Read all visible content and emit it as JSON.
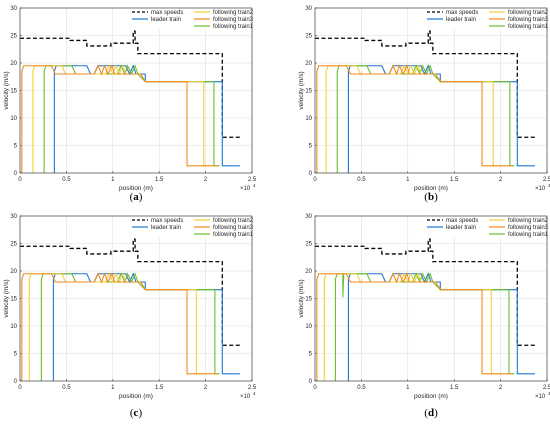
{
  "x_exponent": "×10",
  "x_exponent_power": "4",
  "chart_data": [
    {
      "type": "line",
      "panel": "(a)",
      "caption_letter": "a",
      "xlabel": "position (m)",
      "ylabel": "velocity (m/s)",
      "xlim": [
        0,
        2.5
      ],
      "ylim": [
        0,
        30
      ],
      "xticks": [
        "0",
        "0.5",
        "1",
        "1.5",
        "2",
        "2.5"
      ],
      "yticks": [
        "0",
        "5",
        "10",
        "15",
        "20",
        "25",
        "30"
      ],
      "grid": true,
      "legend_position": "top-right",
      "series": [
        {
          "name": "max speeds",
          "color": "#000000",
          "style": "dashed",
          "x": [
            0,
            0.54,
            0.54,
            0.72,
            0.72,
            0.98,
            0.98,
            1.22,
            1.22,
            1.24,
            1.24,
            1.27,
            1.27,
            2.18,
            2.18,
            2.37
          ],
          "y": [
            24.5,
            24.5,
            24.1,
            24.1,
            23.1,
            23.1,
            23.6,
            23.6,
            25.8,
            25.8,
            23.6,
            23.6,
            21.7,
            21.7,
            6.5,
            6.5
          ]
        },
        {
          "name": "leader train",
          "color": "#1f77d4",
          "style": "solid",
          "x": [
            0.37,
            0.37,
            0.39,
            0.41,
            0.72,
            0.76,
            0.8,
            0.84,
            1.14,
            1.18,
            1.22,
            1.25,
            1.3,
            1.35,
            1.35,
            2.18,
            2.18,
            2.37
          ],
          "y": [
            0,
            18.5,
            19.5,
            19.5,
            19.5,
            18,
            18,
            19.5,
            19.5,
            18,
            19.5,
            18,
            18,
            18,
            16.6,
            16.6,
            1.3,
            1.3
          ]
        },
        {
          "name": "following train1",
          "color": "#6abf2a",
          "style": "solid",
          "x": [
            0.26,
            0.26,
            0.28,
            0.3,
            0.56,
            0.6,
            0.64,
            1.05,
            1.09,
            1.13,
            1.16,
            1.2,
            1.24,
            1.27,
            1.35,
            2.09,
            2.09,
            2.15
          ],
          "y": [
            0,
            18.5,
            19.5,
            19.5,
            19.5,
            18,
            18,
            18,
            19.5,
            18,
            19.5,
            18,
            19.5,
            18,
            16.6,
            16.6,
            1.3,
            1.3
          ]
        },
        {
          "name": "following train2",
          "color": "#f2d03b",
          "style": "solid",
          "x": [
            0.14,
            0.14,
            0.16,
            0.18,
            0.45,
            0.49,
            0.53,
            0.92,
            0.96,
            1.0,
            1.03,
            1.07,
            1.11,
            1.14,
            1.3,
            1.35,
            1.98,
            1.98,
            2.05
          ],
          "y": [
            0,
            18.5,
            19.5,
            19.5,
            19.5,
            18,
            18,
            18,
            19.5,
            18,
            19.5,
            18,
            19.5,
            18,
            18,
            16.6,
            16.6,
            1.3,
            1.3
          ]
        },
        {
          "name": "following train3",
          "color": "#f28a1e",
          "style": "solid",
          "x": [
            0.02,
            0.02,
            0.04,
            0.06,
            0.34,
            0.38,
            0.42,
            0.8,
            0.84,
            0.88,
            0.91,
            0.95,
            0.99,
            1.02,
            1.3,
            1.35,
            1.8,
            1.8,
            2.13
          ],
          "y": [
            0,
            18.5,
            19.5,
            19.5,
            19.5,
            18,
            18,
            18,
            19.5,
            18,
            19.5,
            18,
            19.5,
            18,
            18,
            16.6,
            16.6,
            1.3,
            1.3
          ]
        }
      ]
    },
    {
      "type": "line",
      "panel": "(b)",
      "caption_letter": "b",
      "xlabel": "position (m)",
      "ylabel": "velocity (m/s)",
      "xlim": [
        0,
        2.5
      ],
      "ylim": [
        0,
        30
      ],
      "xticks": [
        "0",
        "0.5",
        "1",
        "1.5",
        "2",
        "2.5"
      ],
      "yticks": [
        "0",
        "5",
        "10",
        "15",
        "20",
        "25",
        "30"
      ],
      "grid": true,
      "legend_position": "top-right",
      "series": [
        {
          "name": "max speeds",
          "color": "#000000",
          "style": "dashed",
          "x": [
            0,
            0.54,
            0.54,
            0.72,
            0.72,
            0.98,
            0.98,
            1.22,
            1.22,
            1.24,
            1.24,
            1.27,
            1.27,
            2.18,
            2.18,
            2.37
          ],
          "y": [
            24.5,
            24.5,
            24.1,
            24.1,
            23.1,
            23.1,
            23.6,
            23.6,
            25.8,
            25.8,
            23.6,
            23.6,
            21.7,
            21.7,
            6.5,
            6.5
          ]
        },
        {
          "name": "leader train",
          "color": "#1f77d4",
          "style": "solid",
          "x": [
            0.36,
            0.36,
            0.38,
            0.4,
            0.72,
            0.76,
            0.8,
            0.84,
            1.14,
            1.18,
            1.22,
            1.25,
            1.3,
            1.35,
            1.35,
            2.18,
            2.18,
            2.37
          ],
          "y": [
            0,
            18.5,
            19.5,
            19.5,
            19.5,
            18,
            18,
            19.5,
            19.5,
            18,
            19.5,
            18,
            18,
            18,
            16.6,
            16.6,
            1.3,
            1.3
          ]
        },
        {
          "name": "following train1",
          "color": "#6abf2a",
          "style": "solid",
          "x": [
            0.24,
            0.24,
            0.26,
            0.28,
            0.56,
            0.6,
            0.64,
            1.05,
            1.09,
            1.13,
            1.16,
            1.2,
            1.24,
            1.27,
            1.35,
            2.1,
            2.1,
            2.15
          ],
          "y": [
            0,
            18.5,
            19.5,
            19.5,
            19.5,
            18,
            18,
            18,
            19.5,
            18,
            19.5,
            18,
            19.5,
            18,
            16.6,
            16.6,
            1.3,
            1.3
          ]
        },
        {
          "name": "following train2",
          "color": "#f2d03b",
          "style": "solid",
          "x": [
            0.12,
            0.12,
            0.14,
            0.16,
            0.45,
            0.49,
            0.53,
            0.92,
            0.96,
            1.0,
            1.03,
            1.07,
            1.11,
            1.14,
            1.3,
            1.35,
            1.92,
            1.92,
            2.0
          ],
          "y": [
            0,
            18.5,
            19.5,
            19.5,
            19.5,
            18,
            18,
            18,
            19.5,
            18,
            19.5,
            18,
            19.5,
            18,
            18,
            16.6,
            16.6,
            1.3,
            1.3
          ]
        },
        {
          "name": "following train3",
          "color": "#f28a1e",
          "style": "solid",
          "x": [
            0.02,
            0.02,
            0.04,
            0.06,
            0.34,
            0.38,
            0.42,
            0.8,
            0.84,
            0.88,
            0.91,
            0.95,
            0.99,
            1.02,
            1.3,
            1.35,
            1.8,
            1.8,
            2.13
          ],
          "y": [
            0,
            18.5,
            19.5,
            19.5,
            19.5,
            18,
            18,
            18,
            19.5,
            18,
            19.5,
            18,
            19.5,
            18,
            18,
            16.6,
            16.6,
            1.3,
            1.3
          ]
        }
      ]
    },
    {
      "type": "line",
      "panel": "(c)",
      "caption_letter": "c",
      "xlabel": "position (m)",
      "ylabel": "velocity (m/s)",
      "xlim": [
        0,
        2.5
      ],
      "ylim": [
        0,
        30
      ],
      "xticks": [
        "0",
        "0.5",
        "1",
        "1.5",
        "2",
        "2.5"
      ],
      "yticks": [
        "0",
        "5",
        "10",
        "15",
        "20",
        "25",
        "30"
      ],
      "grid": true,
      "legend_position": "top-right",
      "series": [
        {
          "name": "max speeds",
          "color": "#000000",
          "style": "dashed",
          "x": [
            0,
            0.54,
            0.54,
            0.72,
            0.72,
            0.98,
            0.98,
            1.22,
            1.22,
            1.24,
            1.24,
            1.27,
            1.27,
            2.18,
            2.18,
            2.37
          ],
          "y": [
            24.5,
            24.5,
            24.1,
            24.1,
            23.1,
            23.1,
            23.6,
            23.6,
            25.8,
            25.8,
            23.6,
            23.6,
            21.7,
            21.7,
            6.5,
            6.5
          ]
        },
        {
          "name": "leader train",
          "color": "#1f77d4",
          "style": "solid",
          "x": [
            0.36,
            0.36,
            0.38,
            0.4,
            0.72,
            0.76,
            0.8,
            0.84,
            1.14,
            1.18,
            1.22,
            1.25,
            1.3,
            1.35,
            1.35,
            2.18,
            2.18,
            2.37
          ],
          "y": [
            0,
            18.5,
            19.5,
            19.5,
            19.5,
            18,
            18,
            19.5,
            19.5,
            18,
            19.5,
            18,
            18,
            18,
            16.6,
            16.6,
            1.3,
            1.3
          ]
        },
        {
          "name": "following train1",
          "color": "#6abf2a",
          "style": "solid",
          "x": [
            0.23,
            0.23,
            0.25,
            0.27,
            0.56,
            0.6,
            0.64,
            1.05,
            1.09,
            1.13,
            1.16,
            1.2,
            1.24,
            1.27,
            1.35,
            2.1,
            2.1,
            2.15
          ],
          "y": [
            0,
            18.5,
            19.5,
            19.5,
            19.5,
            18,
            18,
            18,
            19.5,
            18,
            19.5,
            18,
            19.5,
            18,
            16.6,
            16.6,
            1.3,
            1.3
          ]
        },
        {
          "name": "following train2",
          "color": "#f2d03b",
          "style": "solid",
          "x": [
            0.1,
            0.1,
            0.12,
            0.14,
            0.45,
            0.49,
            0.53,
            0.92,
            0.96,
            1.0,
            1.03,
            1.07,
            1.11,
            1.14,
            1.3,
            1.35,
            1.9,
            1.9,
            1.98
          ],
          "y": [
            0,
            18.5,
            19.5,
            19.5,
            19.5,
            18,
            18,
            18,
            19.5,
            18,
            19.5,
            18,
            19.5,
            18,
            18,
            16.6,
            16.6,
            1.3,
            1.3
          ]
        },
        {
          "name": "following train3",
          "color": "#f28a1e",
          "style": "solid",
          "x": [
            0.02,
            0.02,
            0.04,
            0.06,
            0.34,
            0.38,
            0.42,
            0.8,
            0.84,
            0.88,
            0.91,
            0.95,
            0.99,
            1.02,
            1.3,
            1.35,
            1.8,
            1.8,
            2.13
          ],
          "y": [
            0,
            18.5,
            19.5,
            19.5,
            19.5,
            18,
            18,
            18,
            19.5,
            18,
            19.5,
            18,
            19.5,
            18,
            18,
            16.6,
            16.6,
            1.3,
            1.3
          ]
        }
      ]
    },
    {
      "type": "line",
      "panel": "(d)",
      "caption_letter": "d",
      "xlabel": "position (m)",
      "ylabel": "velocity (m/s)",
      "xlim": [
        0,
        2.5
      ],
      "ylim": [
        0,
        30
      ],
      "xticks": [
        "0",
        "0.5",
        "1",
        "1.5",
        "2",
        "2.5"
      ],
      "yticks": [
        "0",
        "5",
        "10",
        "15",
        "20",
        "25",
        "30"
      ],
      "grid": true,
      "legend_position": "top-right",
      "series": [
        {
          "name": "max speeds",
          "color": "#000000",
          "style": "dashed",
          "x": [
            0,
            0.54,
            0.54,
            0.72,
            0.72,
            0.98,
            0.98,
            1.22,
            1.22,
            1.24,
            1.24,
            1.27,
            1.27,
            2.18,
            2.18,
            2.37
          ],
          "y": [
            24.5,
            24.5,
            24.1,
            24.1,
            23.1,
            23.1,
            23.6,
            23.6,
            25.8,
            25.8,
            23.6,
            23.6,
            21.7,
            21.7,
            6.5,
            6.5
          ]
        },
        {
          "name": "leader train",
          "color": "#1f77d4",
          "style": "solid",
          "x": [
            0.36,
            0.36,
            0.38,
            0.4,
            0.72,
            0.76,
            0.8,
            0.84,
            1.14,
            1.18,
            1.22,
            1.25,
            1.3,
            1.35,
            1.35,
            2.18,
            2.18,
            2.37
          ],
          "y": [
            0,
            18.5,
            19.5,
            19.5,
            19.5,
            18,
            18,
            19.5,
            19.5,
            18,
            19.5,
            18,
            18,
            18,
            16.6,
            16.6,
            1.3,
            1.3
          ]
        },
        {
          "name": "following train1",
          "color": "#6abf2a",
          "style": "solid",
          "x": [
            0.22,
            0.22,
            0.24,
            0.26,
            0.3,
            0.3,
            0.31,
            0.56,
            0.6,
            0.64,
            1.05,
            1.09,
            1.13,
            1.16,
            1.2,
            1.24,
            1.27,
            1.35,
            2.09,
            2.09,
            2.15
          ],
          "y": [
            0,
            18.5,
            19.5,
            19.5,
            19.5,
            15.2,
            19.5,
            19.5,
            18,
            18,
            18,
            19.5,
            18,
            19.5,
            18,
            19.5,
            18,
            16.6,
            16.6,
            1.3,
            1.3
          ]
        },
        {
          "name": "following train2",
          "color": "#f2d03b",
          "style": "solid",
          "x": [
            0.1,
            0.1,
            0.12,
            0.14,
            0.45,
            0.49,
            0.53,
            0.92,
            0.96,
            1.0,
            1.03,
            1.07,
            1.11,
            1.14,
            1.3,
            1.35,
            1.9,
            1.9,
            1.98
          ],
          "y": [
            0,
            18.5,
            19.5,
            19.5,
            19.5,
            18,
            18,
            18,
            19.5,
            18,
            19.5,
            18,
            19.5,
            18,
            18,
            16.6,
            16.6,
            1.3,
            1.3
          ]
        },
        {
          "name": "following train3",
          "color": "#f28a1e",
          "style": "solid",
          "x": [
            0.02,
            0.02,
            0.04,
            0.06,
            0.34,
            0.38,
            0.42,
            0.8,
            0.84,
            0.88,
            0.91,
            0.95,
            0.99,
            1.02,
            1.3,
            1.35,
            1.8,
            1.8,
            2.13
          ],
          "y": [
            0,
            18.5,
            19.5,
            19.5,
            19.5,
            18,
            18,
            18,
            19.5,
            18,
            19.5,
            18,
            19.5,
            18,
            18,
            16.6,
            16.6,
            1.3,
            1.3
          ]
        }
      ]
    }
  ]
}
